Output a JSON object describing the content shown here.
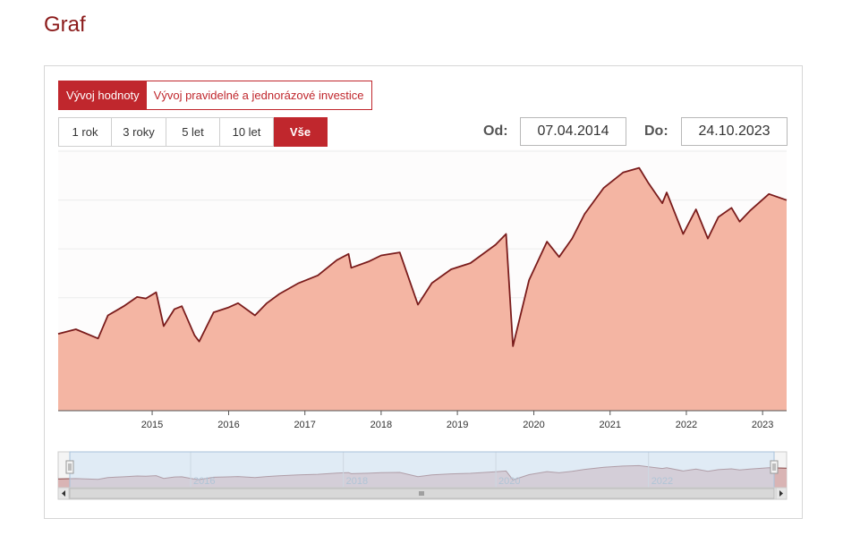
{
  "page": {
    "title": "Graf"
  },
  "view_tabs": [
    {
      "label": "Vývoj hodnoty",
      "active": true
    },
    {
      "label": "Vývoj pravidelné a jednorázové investice",
      "active": false
    }
  ],
  "range_buttons": [
    {
      "label": "1 rok",
      "active": false
    },
    {
      "label": "3 roky",
      "active": false
    },
    {
      "label": "5 let",
      "active": false
    },
    {
      "label": "10 let",
      "active": false
    },
    {
      "label": "Vše",
      "active": true
    }
  ],
  "date_range": {
    "from_label": "Od:",
    "from_value": "07.04.2014",
    "to_label": "Do:",
    "to_value": "24.10.2023"
  },
  "colors": {
    "accent": "#c0272d",
    "line": "#7a1c1c",
    "area": "#f4b5a3",
    "navigator_mask": "#cfe3f5"
  },
  "chart_data": {
    "type": "area",
    "title": "",
    "xlabel": "",
    "ylabel": "",
    "xlim": [
      "2014-04-07",
      "2023-10-24"
    ],
    "x_ticks": [
      "2015",
      "2016",
      "2017",
      "2018",
      "2019",
      "2020",
      "2021",
      "2022",
      "2023"
    ],
    "navigator_ticks": [
      "2016",
      "2018",
      "2020",
      "2022"
    ],
    "grid": true,
    "legend": "none",
    "series": [
      {
        "x": [
          "2014-04-07",
          "2014-07-01",
          "2014-10-15",
          "2014-12-01",
          "2015-02-15",
          "2015-04-20",
          "2015-06-01",
          "2015-07-20",
          "2015-08-25",
          "2015-10-15",
          "2015-11-20",
          "2016-01-20",
          "2016-02-11",
          "2016-04-20",
          "2016-06-27",
          "2016-08-15",
          "2016-11-04",
          "2016-12-31",
          "2017-03-01",
          "2017-06-01",
          "2017-09-01",
          "2017-12-01",
          "2018-01-26",
          "2018-02-08",
          "2018-05-01",
          "2018-07-01",
          "2018-09-28",
          "2018-12-24",
          "2019-03-01",
          "2019-06-01",
          "2019-09-01",
          "2019-12-31",
          "2020-02-19",
          "2020-03-23",
          "2020-06-08",
          "2020-09-02",
          "2020-10-30",
          "2020-12-31",
          "2021-03-01",
          "2021-06-01",
          "2021-09-01",
          "2021-11-17",
          "2022-01-01",
          "2022-03-08",
          "2022-03-29",
          "2022-06-16",
          "2022-08-16",
          "2022-10-12",
          "2022-12-01",
          "2023-02-02",
          "2023-03-13",
          "2023-05-01",
          "2023-07-31",
          "2023-10-24"
        ],
        "y": [
          100,
          103,
          97,
          112,
          118,
          124,
          123,
          127,
          105,
          116,
          118,
          99,
          95,
          114,
          117,
          120,
          112,
          120,
          126,
          133,
          138,
          148,
          152,
          143,
          147,
          151,
          153,
          119,
          133,
          142,
          146,
          158,
          165,
          92,
          135,
          160,
          150,
          162,
          178,
          195,
          205,
          208,
          198,
          185,
          192,
          165,
          181,
          162,
          176,
          182,
          173,
          180,
          191,
          187
        ]
      }
    ]
  }
}
